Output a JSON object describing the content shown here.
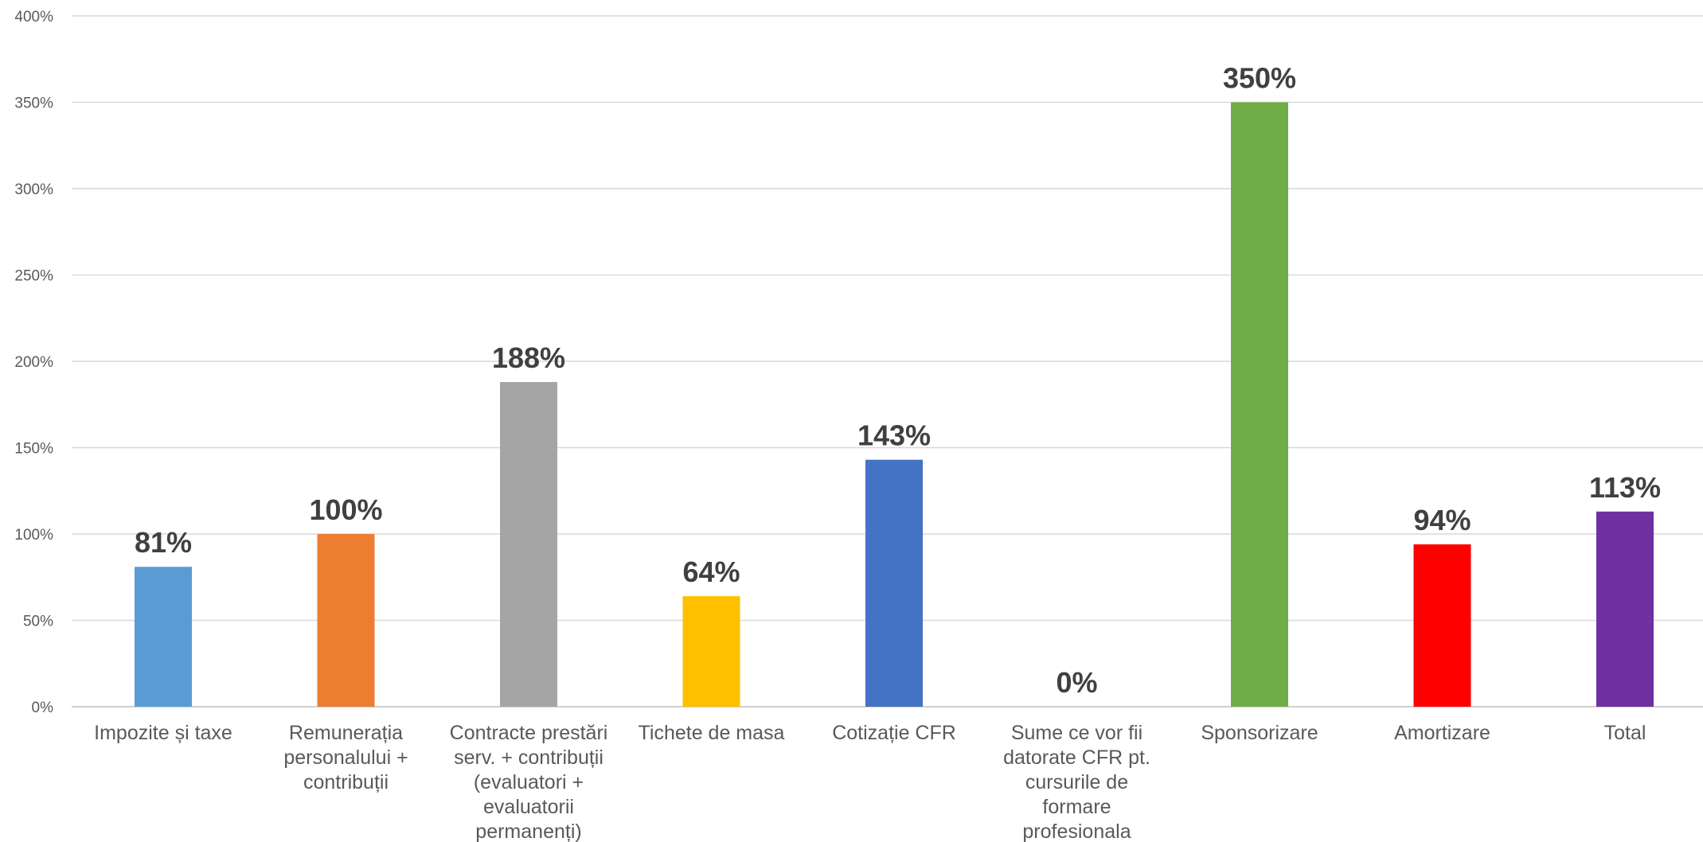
{
  "chart_data": {
    "type": "bar",
    "title": "",
    "xlabel": "",
    "ylabel": "",
    "ylim": [
      0,
      400
    ],
    "ytick_step": 50,
    "ytick_format": "percent",
    "grid": "horizontal",
    "legend": "none",
    "categories": [
      [
        "Impozite și taxe"
      ],
      [
        "Remunerația",
        "personalului +",
        "contribuții"
      ],
      [
        "Contracte prestări",
        "serv. + contribuții",
        "(evaluatori +",
        "evaluatorii",
        "permanenți)"
      ],
      [
        "Tichete de masa"
      ],
      [
        "Cotizație CFR"
      ],
      [
        "Sume ce vor fii",
        "datorate CFR pt.",
        "cursurile de",
        "formare",
        "profesionala"
      ],
      [
        "Sponsorizare"
      ],
      [
        "Amortizare"
      ],
      [
        "Total"
      ]
    ],
    "values": [
      81,
      100,
      188,
      64,
      143,
      0,
      350,
      94,
      113
    ],
    "data_labels": [
      "81%",
      "100%",
      "188%",
      "64%",
      "143%",
      "0%",
      "350%",
      "94%",
      "113%"
    ],
    "colors": [
      "#5b9bd5",
      "#ed7d31",
      "#a5a5a5",
      "#ffc000",
      "#4472c4",
      "#70ad47",
      "#70ad47",
      "#ff0000",
      "#7030a0"
    ]
  }
}
